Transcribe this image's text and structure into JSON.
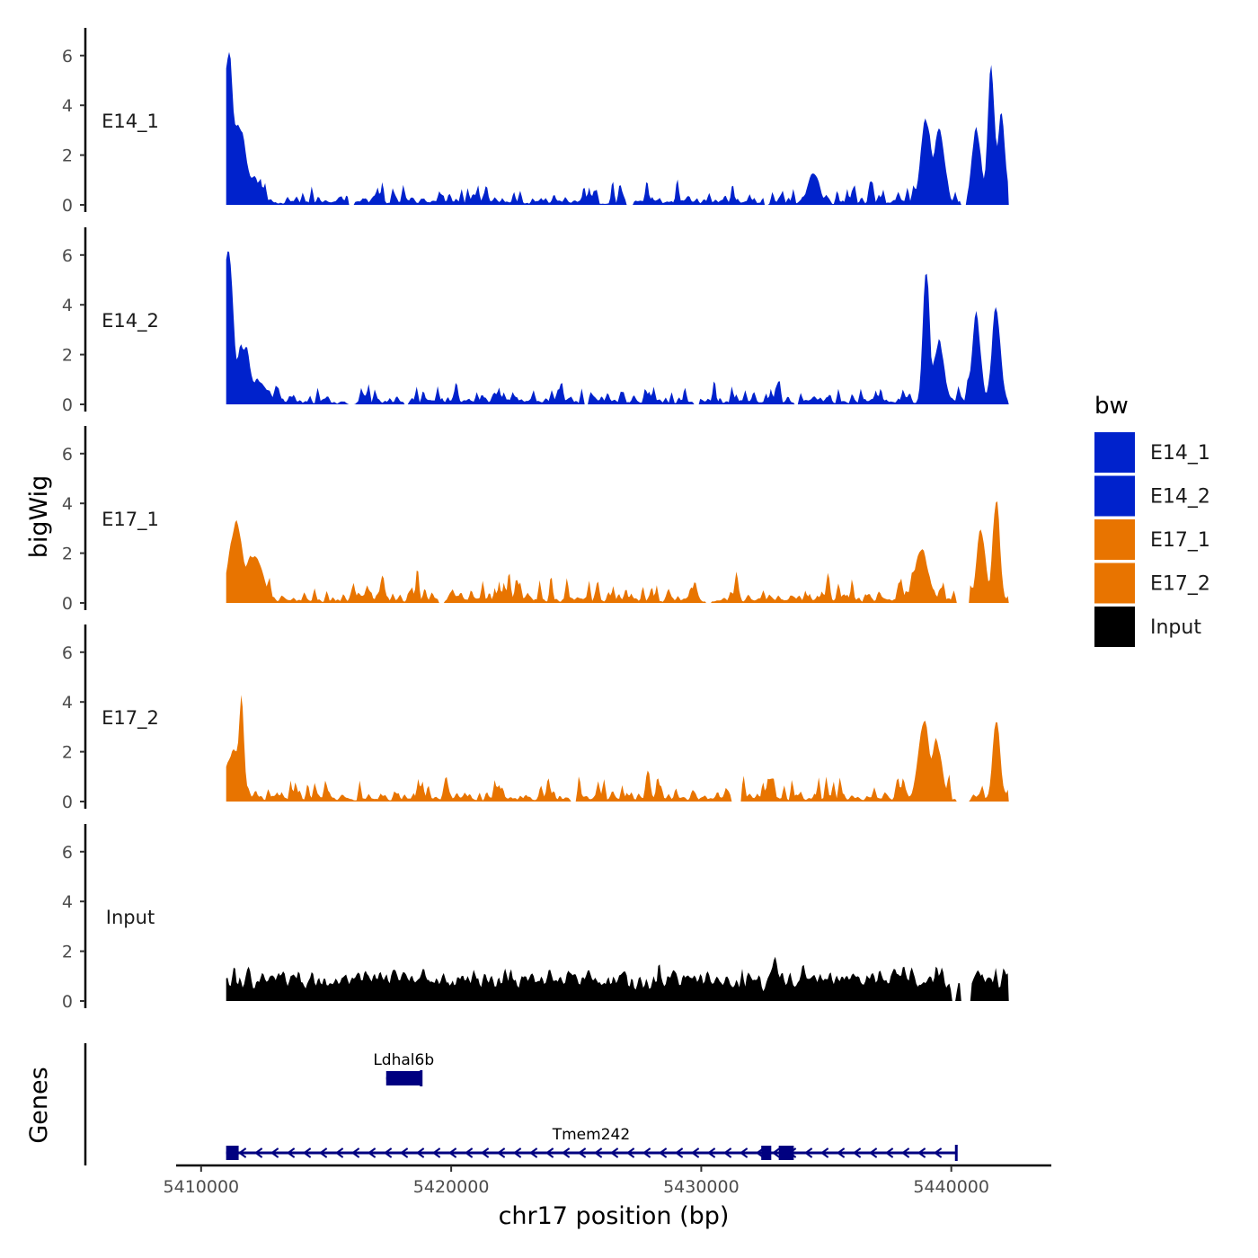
{
  "chart_data": {
    "type": "area",
    "y_axis_title": "bigWig",
    "x_axis_title": "chr17 position (bp)",
    "xlim": [
      5409000,
      5444000
    ],
    "x_ticks": [
      5410000,
      5420000,
      5430000,
      5440000
    ],
    "x_tick_labels": [
      "5410000",
      "5420000",
      "5430000",
      "5440000"
    ],
    "ylim": [
      0,
      7
    ],
    "y_ticks": [
      0,
      2,
      4,
      6
    ],
    "y_tick_labels": [
      "0",
      "2",
      "4",
      "6"
    ],
    "series": [
      {
        "name": "E14_1",
        "color": "#0022cc",
        "seed": 11,
        "peaks": [
          [
            5411100,
            6.5,
            250
          ],
          [
            5411500,
            3.5,
            400
          ],
          [
            5412000,
            1.2,
            500
          ],
          [
            5434500,
            1.4,
            300
          ],
          [
            5439000,
            3.8,
            300
          ],
          [
            5439500,
            3.0,
            300
          ],
          [
            5441000,
            3.2,
            250
          ],
          [
            5441600,
            5.8,
            200
          ],
          [
            5442000,
            3.8,
            200
          ]
        ],
        "gaps": [
          [
            5415900,
            5416100
          ],
          [
            5427000,
            5427300
          ],
          [
            5432500,
            5432700
          ],
          [
            5440400,
            5440600
          ]
        ],
        "noise": 1.0
      },
      {
        "name": "E14_2",
        "color": "#0022cc",
        "seed": 23,
        "peaks": [
          [
            5411100,
            6.5,
            250
          ],
          [
            5411700,
            2.5,
            350
          ],
          [
            5412300,
            1.0,
            500
          ],
          [
            5439000,
            5.5,
            180
          ],
          [
            5439500,
            2.5,
            300
          ],
          [
            5441000,
            3.5,
            250
          ],
          [
            5441800,
            3.8,
            250
          ]
        ],
        "gaps": [
          [
            5415900,
            5416100
          ],
          [
            5418100,
            5418300
          ],
          [
            5425300,
            5425500
          ],
          [
            5429700,
            5429900
          ],
          [
            5433700,
            5433900
          ]
        ],
        "noise": 1.0
      },
      {
        "name": "E17_1",
        "color": "#e87400",
        "seed": 37,
        "peaks": [
          [
            5411400,
            3.2,
            400
          ],
          [
            5412100,
            2.0,
            500
          ],
          [
            5438800,
            2.0,
            400
          ],
          [
            5441200,
            3.0,
            250
          ],
          [
            5441800,
            4.3,
            200
          ]
        ],
        "gaps": [
          [
            5419500,
            5419700
          ],
          [
            5430200,
            5430400
          ],
          [
            5440200,
            5440700
          ]
        ],
        "noise": 1.2
      },
      {
        "name": "E17_2",
        "color": "#e87400",
        "seed": 53,
        "peaks": [
          [
            5411600,
            4.3,
            150
          ],
          [
            5411300,
            2.2,
            400
          ],
          [
            5438900,
            3.6,
            300
          ],
          [
            5439400,
            2.5,
            300
          ],
          [
            5441800,
            3.5,
            200
          ]
        ],
        "gaps": [
          [
            5424800,
            5425000
          ],
          [
            5431200,
            5431600
          ],
          [
            5440200,
            5440700
          ]
        ],
        "noise": 1.2
      },
      {
        "name": "Input",
        "color": "#000000",
        "seed": 71,
        "peaks": [],
        "gaps": [
          [
            5440000,
            5440200
          ],
          [
            5440400,
            5440800
          ]
        ],
        "noise": 1.6
      }
    ],
    "legend": {
      "title": "bw",
      "entries": [
        {
          "label": "E14_1",
          "color": "#0022cc"
        },
        {
          "label": "E14_2",
          "color": "#0022cc"
        },
        {
          "label": "E17_1",
          "color": "#e87400"
        },
        {
          "label": "E17_2",
          "color": "#e87400"
        },
        {
          "label": "Input",
          "color": "#000000"
        }
      ]
    },
    "genes_track": {
      "title": "Genes",
      "color": "#000080",
      "genes": [
        {
          "name": "Ldhal6b",
          "start": 5417400,
          "end": 5418800,
          "strand": "-",
          "exons": [
            [
              5417400,
              5418800
            ]
          ]
        },
        {
          "name": "Tmem242",
          "start": 5411000,
          "end": 5440200,
          "strand": "-",
          "exons": [
            [
              5411000,
              5411500
            ],
            [
              5432400,
              5432800
            ],
            [
              5433100,
              5433700
            ]
          ]
        }
      ]
    }
  }
}
